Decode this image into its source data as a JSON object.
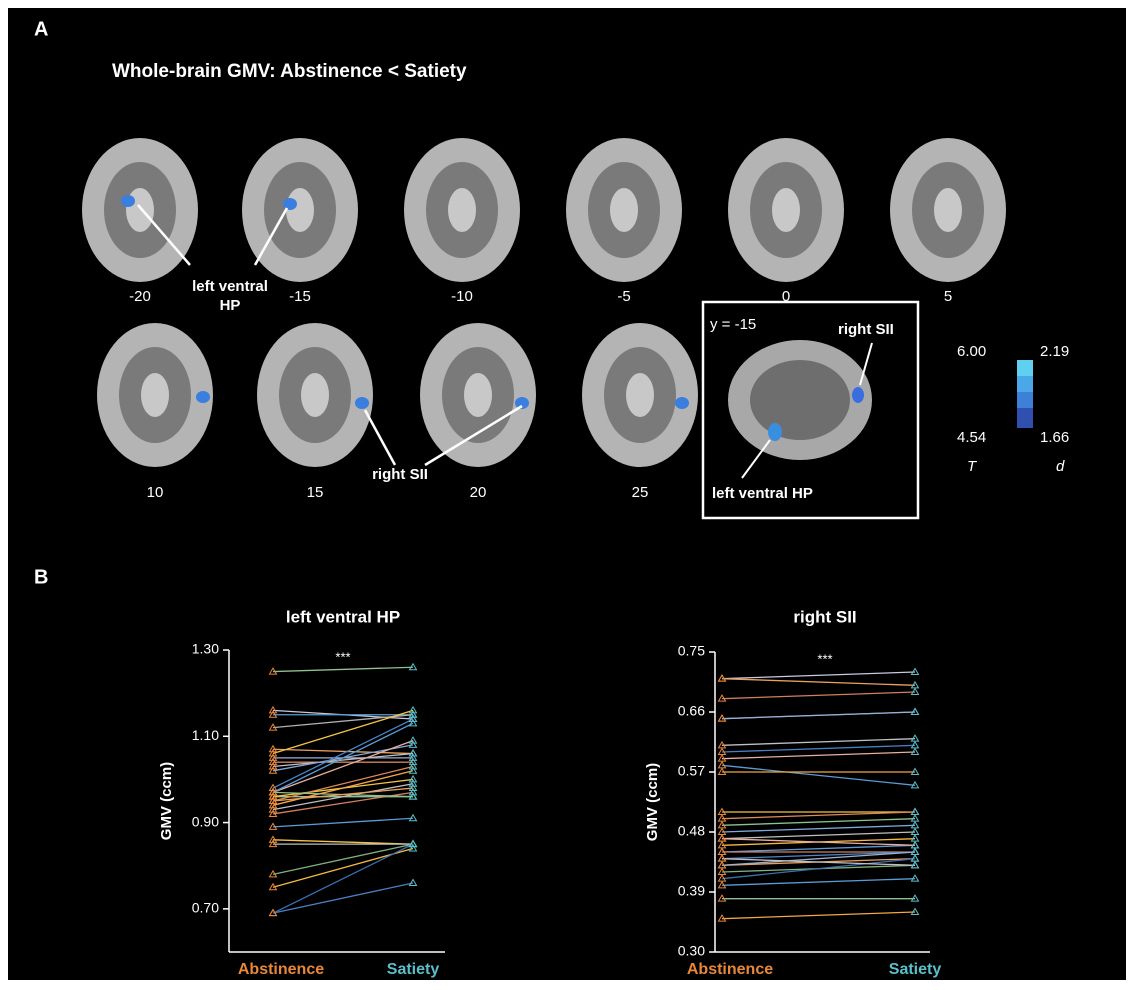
{
  "panel_a": {
    "label": "A",
    "title": "Whole-brain GMV: Abstinence < Satiety",
    "slices": [
      "-20",
      "-15",
      "-10",
      "-5",
      "0",
      "5",
      "10",
      "15",
      "20",
      "25"
    ],
    "hp_label": [
      "left ventral",
      "HP"
    ],
    "sii_label": "right SII",
    "inset": {
      "coord": "y = -15",
      "sii": "right SII",
      "hp": "left ventral HP"
    },
    "colorbar": {
      "t_max": "6.00",
      "t_min": "4.54",
      "t_name": "T",
      "d_max": "2.19",
      "d_min": "1.66",
      "d_name": "d"
    }
  },
  "panel_b": {
    "label": "B"
  },
  "chart_data": [
    {
      "type": "line",
      "title": "left ventral HP",
      "annotation": "***",
      "ylabel": "GMV (ccm)",
      "categories": [
        "Abstinence",
        "Satiety"
      ],
      "marker_colors": [
        "#e8873a",
        "#5bbfc9"
      ],
      "ylim": [
        0.6,
        1.3
      ],
      "yticks": [
        {
          "value": 0.7,
          "label": "0.70"
        },
        {
          "value": 0.9,
          "label": "0.90"
        },
        {
          "value": 1.1,
          "label": "1.10"
        },
        {
          "value": 1.3,
          "label": "1.30"
        }
      ],
      "series": [
        {
          "color": "#8fc18f",
          "values": [
            1.25,
            1.26
          ]
        },
        {
          "color": "#c9c9e0",
          "values": [
            1.16,
            1.14
          ]
        },
        {
          "color": "#5b9bd5",
          "values": [
            1.15,
            1.15
          ]
        },
        {
          "color": "#b0b0b0",
          "values": [
            1.12,
            1.15
          ]
        },
        {
          "color": "#e8a060",
          "values": [
            1.07,
            1.06
          ]
        },
        {
          "color": "#f4c542",
          "values": [
            1.06,
            1.16
          ]
        },
        {
          "color": "#9ab0d0",
          "values": [
            1.05,
            1.05
          ]
        },
        {
          "color": "#d08060",
          "values": [
            1.04,
            1.04
          ]
        },
        {
          "color": "#c0c0c0",
          "values": [
            1.03,
            1.06
          ]
        },
        {
          "color": "#7fa8d8",
          "values": [
            1.02,
            1.08
          ]
        },
        {
          "color": "#4a86c8",
          "values": [
            0.98,
            1.14
          ]
        },
        {
          "color": "#e8b0a0",
          "values": [
            0.97,
            1.09
          ]
        },
        {
          "color": "#5b9bd5",
          "values": [
            0.97,
            1.13
          ]
        },
        {
          "color": "#8fc18f",
          "values": [
            0.96,
            0.96
          ]
        },
        {
          "color": "#f4c542",
          "values": [
            0.96,
            1.0
          ]
        },
        {
          "color": "#e08a5a",
          "values": [
            0.95,
            1.03
          ]
        },
        {
          "color": "#f4a742",
          "values": [
            0.94,
            1.02
          ]
        },
        {
          "color": "#c0c0c0",
          "values": [
            0.93,
            0.99
          ]
        },
        {
          "color": "#d08060",
          "values": [
            0.92,
            0.97
          ]
        },
        {
          "color": "#5b9bd5",
          "values": [
            0.89,
            0.91
          ]
        },
        {
          "color": "#f4c542",
          "values": [
            0.86,
            0.85
          ]
        },
        {
          "color": "#c0c0c0",
          "values": [
            0.85,
            0.85
          ]
        },
        {
          "color": "#7fb07f",
          "values": [
            0.78,
            0.85
          ]
        },
        {
          "color": "#f4b942",
          "values": [
            0.75,
            0.84
          ]
        },
        {
          "color": "#4a7fc0",
          "values": [
            0.69,
            0.76
          ]
        },
        {
          "color": "#3a70b0",
          "values": [
            0.69,
            0.85
          ]
        },
        {
          "color": "#8fc18f",
          "values": [
            0.97,
            0.96
          ]
        },
        {
          "color": "#e8a060",
          "values": [
            0.95,
            0.98
          ]
        }
      ]
    },
    {
      "type": "line",
      "title": "right SII",
      "annotation": "***",
      "ylabel": "GMV (ccm)",
      "categories": [
        "Abstinence",
        "Satiety"
      ],
      "marker_colors": [
        "#e8873a",
        "#5bbfc9"
      ],
      "ylim": [
        0.3,
        0.75
      ],
      "yticks": [
        {
          "value": 0.3,
          "label": "0.30"
        },
        {
          "value": 0.39,
          "label": "0.39"
        },
        {
          "value": 0.48,
          "label": "0.48"
        },
        {
          "value": 0.57,
          "label": "0.57"
        },
        {
          "value": 0.66,
          "label": "0.66"
        },
        {
          "value": 0.75,
          "label": "0.75"
        }
      ],
      "series": [
        {
          "color": "#c9c9e0",
          "values": [
            0.71,
            0.72
          ]
        },
        {
          "color": "#e8a060",
          "values": [
            0.71,
            0.7
          ]
        },
        {
          "color": "#d08060",
          "values": [
            0.68,
            0.69
          ]
        },
        {
          "color": "#5b9bd5",
          "values": [
            0.65,
            0.66
          ]
        },
        {
          "color": "#9ab0d0",
          "values": [
            0.65,
            0.66
          ]
        },
        {
          "color": "#c0c0c0",
          "values": [
            0.61,
            0.62
          ]
        },
        {
          "color": "#4a7fc0",
          "values": [
            0.6,
            0.61
          ]
        },
        {
          "color": "#e8b0a0",
          "values": [
            0.59,
            0.6
          ]
        },
        {
          "color": "#5b9bd5",
          "values": [
            0.58,
            0.55
          ]
        },
        {
          "color": "#f4a742",
          "values": [
            0.57,
            0.57
          ]
        },
        {
          "color": "#f4c542",
          "values": [
            0.51,
            0.51
          ]
        },
        {
          "color": "#e08a5a",
          "values": [
            0.5,
            0.51
          ]
        },
        {
          "color": "#8fc18f",
          "values": [
            0.49,
            0.5
          ]
        },
        {
          "color": "#7fa8d8",
          "values": [
            0.48,
            0.49
          ]
        },
        {
          "color": "#c0c0c0",
          "values": [
            0.47,
            0.48
          ]
        },
        {
          "color": "#f4b942",
          "values": [
            0.46,
            0.47
          ]
        },
        {
          "color": "#5b9bd5",
          "values": [
            0.45,
            0.46
          ]
        },
        {
          "color": "#d08060",
          "values": [
            0.45,
            0.45
          ]
        },
        {
          "color": "#4a86c8",
          "values": [
            0.44,
            0.45
          ]
        },
        {
          "color": "#e8a060",
          "values": [
            0.43,
            0.44
          ]
        },
        {
          "color": "#9ab0d0",
          "values": [
            0.43,
            0.45
          ]
        },
        {
          "color": "#7fb07f",
          "values": [
            0.42,
            0.43
          ]
        },
        {
          "color": "#3a70b0",
          "values": [
            0.41,
            0.44
          ]
        },
        {
          "color": "#5b9bd5",
          "values": [
            0.4,
            0.41
          ]
        },
        {
          "color": "#8fc18f",
          "values": [
            0.38,
            0.38
          ]
        },
        {
          "color": "#f4a742",
          "values": [
            0.35,
            0.36
          ]
        },
        {
          "color": "#e8b0a0",
          "values": [
            0.47,
            0.46
          ]
        },
        {
          "color": "#c0c0c0",
          "values": [
            0.44,
            0.43
          ]
        }
      ]
    }
  ]
}
